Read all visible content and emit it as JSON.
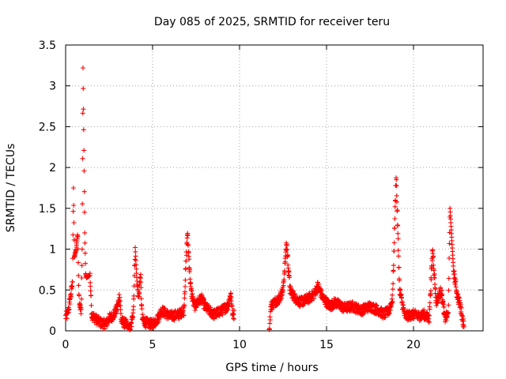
{
  "chart_data": {
    "type": "scatter",
    "title": "Day 085 of 2025, SRMTID for receiver teru",
    "xlabel": "GPS time / hours",
    "ylabel": "SRMTID / TECUs",
    "xlim": [
      0,
      24
    ],
    "ylim": [
      0,
      3.5
    ],
    "grid": true,
    "x_ticks": [
      0,
      5,
      10,
      15,
      20
    ],
    "y_ticks": [
      0,
      0.5,
      1,
      1.5,
      2,
      2.5,
      3,
      3.5
    ],
    "x_tick_labels": [
      "0",
      "5",
      "10",
      "15",
      "20"
    ],
    "y_tick_labels": [
      "0",
      "0.5",
      "1",
      "1.5",
      "2",
      "2.5",
      "3",
      "3.5"
    ],
    "marker": "+",
    "color": "#ff0000",
    "gap_hours": [
      9.7,
      11.7
    ],
    "series": [
      {
        "name": "SRMTID",
        "anchors": [
          [
            0.0,
            0.17
          ],
          [
            0.1,
            0.2
          ],
          [
            0.2,
            0.3
          ],
          [
            0.3,
            0.45
          ],
          [
            0.4,
            0.6
          ],
          [
            0.45,
            1.75
          ],
          [
            0.5,
            0.9
          ],
          [
            0.6,
            1.0
          ],
          [
            0.7,
            1.2
          ],
          [
            0.75,
            0.5
          ],
          [
            0.8,
            0.3
          ],
          [
            0.9,
            0.25
          ],
          [
            0.95,
            1.0
          ],
          [
            1.0,
            3.22
          ],
          [
            1.1,
            1.2
          ],
          [
            1.15,
            0.7
          ],
          [
            1.2,
            0.65
          ],
          [
            1.4,
            0.68
          ],
          [
            1.5,
            0.2
          ],
          [
            1.7,
            0.15
          ],
          [
            2.0,
            0.1
          ],
          [
            2.3,
            0.08
          ],
          [
            2.5,
            0.15
          ],
          [
            2.8,
            0.2
          ],
          [
            3.0,
            0.3
          ],
          [
            3.1,
            0.45
          ],
          [
            3.2,
            0.12
          ],
          [
            3.5,
            0.08
          ],
          [
            3.7,
            0.01
          ],
          [
            3.8,
            0.1
          ],
          [
            3.9,
            0.3
          ],
          [
            4.0,
            1.02
          ],
          [
            4.1,
            0.6
          ],
          [
            4.2,
            0.4
          ],
          [
            4.3,
            0.7
          ],
          [
            4.4,
            0.15
          ],
          [
            4.6,
            0.1
          ],
          [
            5.0,
            0.08
          ],
          [
            5.3,
            0.15
          ],
          [
            5.5,
            0.25
          ],
          [
            6.0,
            0.18
          ],
          [
            6.5,
            0.2
          ],
          [
            6.8,
            0.25
          ],
          [
            7.0,
            1.2
          ],
          [
            7.2,
            0.5
          ],
          [
            7.4,
            0.3
          ],
          [
            7.8,
            0.4
          ],
          [
            8.0,
            0.3
          ],
          [
            8.5,
            0.2
          ],
          [
            9.0,
            0.25
          ],
          [
            9.3,
            0.3
          ],
          [
            9.5,
            0.45
          ],
          [
            9.6,
            0.2
          ],
          [
            9.7,
            0.2
          ],
          [
            11.7,
            0.0
          ],
          [
            11.8,
            0.3
          ],
          [
            12.0,
            0.35
          ],
          [
            12.3,
            0.4
          ],
          [
            12.5,
            0.5
          ],
          [
            12.7,
            1.08
          ],
          [
            12.9,
            0.5
          ],
          [
            13.2,
            0.4
          ],
          [
            13.5,
            0.35
          ],
          [
            14.0,
            0.4
          ],
          [
            14.3,
            0.45
          ],
          [
            14.5,
            0.55
          ],
          [
            14.8,
            0.4
          ],
          [
            15.2,
            0.3
          ],
          [
            15.5,
            0.35
          ],
          [
            16.0,
            0.28
          ],
          [
            16.5,
            0.3
          ],
          [
            17.0,
            0.25
          ],
          [
            17.5,
            0.3
          ],
          [
            18.0,
            0.25
          ],
          [
            18.3,
            0.2
          ],
          [
            18.6,
            0.25
          ],
          [
            18.8,
            0.4
          ],
          [
            19.0,
            1.92
          ],
          [
            19.2,
            0.5
          ],
          [
            19.5,
            0.18
          ],
          [
            20.0,
            0.2
          ],
          [
            20.3,
            0.18
          ],
          [
            20.6,
            0.2
          ],
          [
            20.9,
            0.15
          ],
          [
            21.1,
            1.0
          ],
          [
            21.3,
            0.35
          ],
          [
            21.6,
            0.5
          ],
          [
            21.8,
            0.15
          ],
          [
            22.0,
            0.2
          ],
          [
            22.1,
            1.5
          ],
          [
            22.3,
            0.75
          ],
          [
            22.5,
            0.45
          ],
          [
            22.7,
            0.3
          ],
          [
            22.9,
            0.05
          ]
        ]
      }
    ]
  }
}
